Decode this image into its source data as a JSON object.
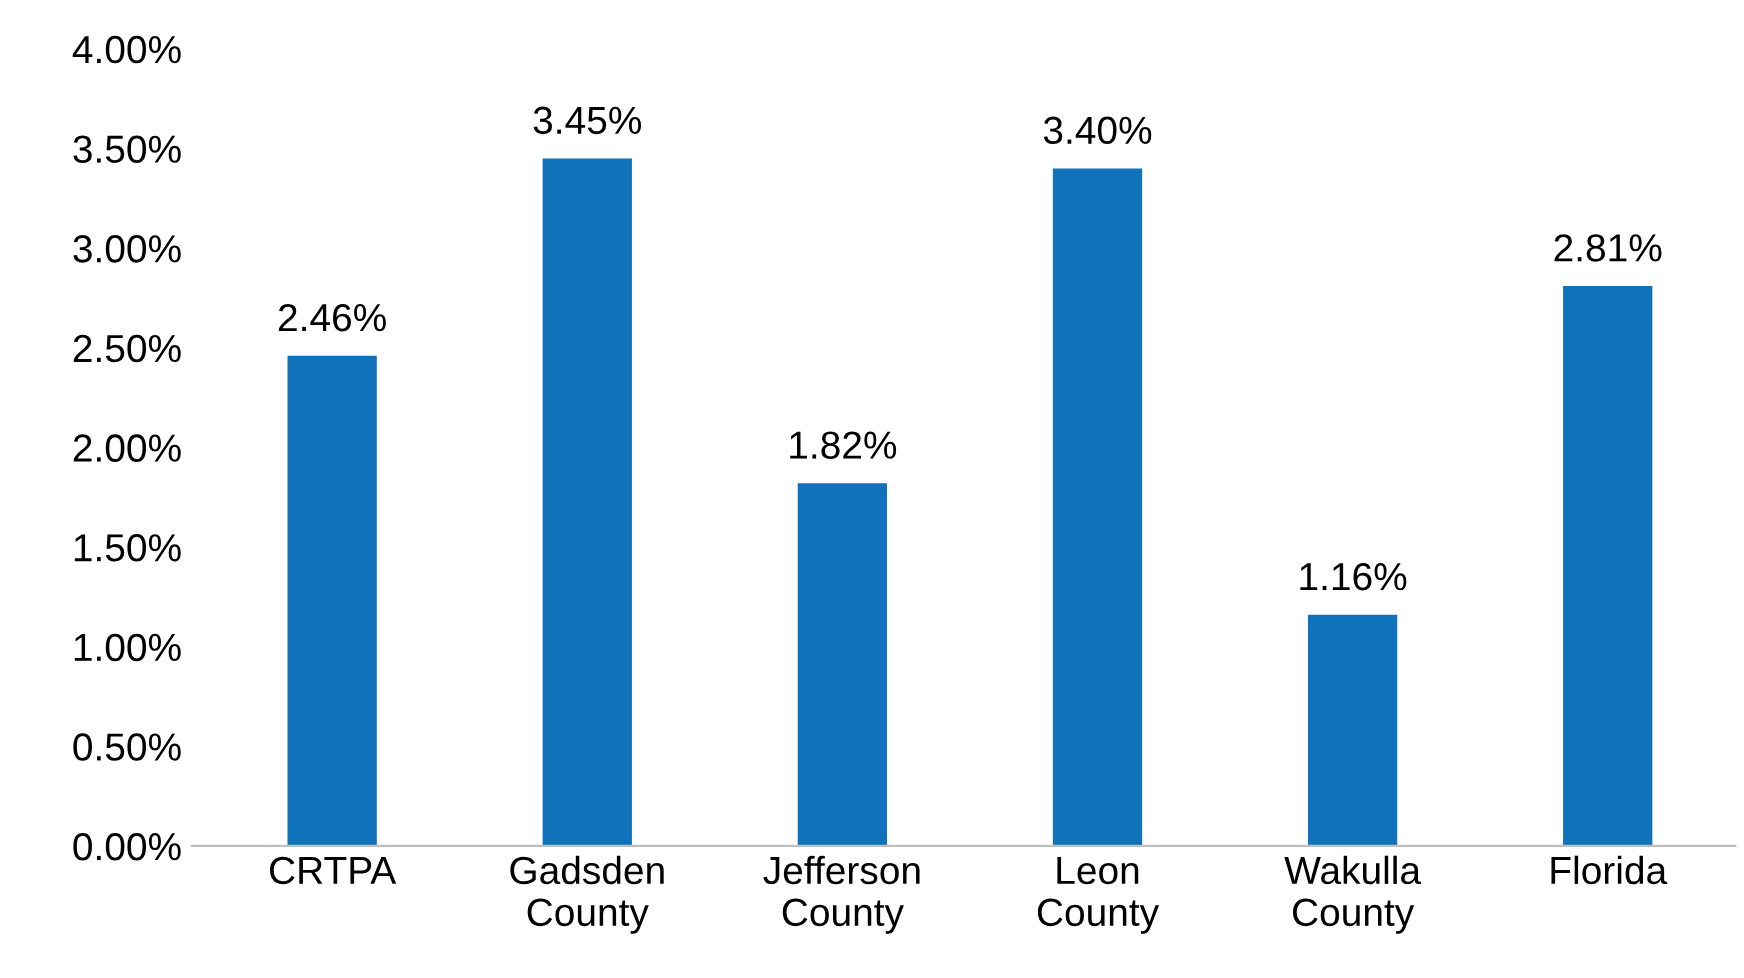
{
  "chart_data": {
    "type": "bar",
    "categories": [
      "CRTPA",
      "Gadsden County",
      "Jefferson County",
      "Leon County",
      "Wakulla County",
      "Florida"
    ],
    "values": [
      2.46,
      3.45,
      1.82,
      3.4,
      1.16,
      2.81
    ],
    "value_labels": [
      "2.46%",
      "3.45%",
      "1.82%",
      "3.40%",
      "1.16%",
      "2.81%"
    ],
    "color": "#1072ba",
    "ylim": [
      0,
      4
    ],
    "yticks": [
      {
        "value": 0,
        "label": "0.00%"
      },
      {
        "value": 0.5,
        "label": "0.50%"
      },
      {
        "value": 1,
        "label": "1.00%"
      },
      {
        "value": 1.5,
        "label": "1.50%"
      },
      {
        "value": 2,
        "label": "2.00%"
      },
      {
        "value": 2.5,
        "label": "2.50%"
      },
      {
        "value": 3,
        "label": "3.00%"
      },
      {
        "value": 3.5,
        "label": "3.50%"
      },
      {
        "value": 4,
        "label": "4.00%"
      }
    ],
    "grid": false
  }
}
